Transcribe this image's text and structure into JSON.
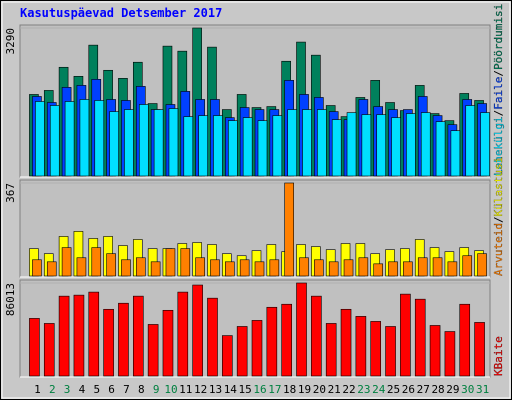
{
  "title": "Kasutuspäevad Detsember 2017",
  "separator": "/",
  "chart_data": [
    {
      "type": "bar",
      "ylim": [
        0,
        3290
      ],
      "yticks": [
        3290
      ],
      "series": [
        {
          "name": "Pöördumisi",
          "color": "#00805c",
          "values": [
            1813,
            1902,
            2417,
            2216,
            2909,
            2350,
            2171,
            2529,
            1611,
            2887,
            2775,
            3290,
            2865,
            1477,
            1813,
            1522,
            1544,
            2551,
            2977,
            2686,
            1567,
            1320,
            1746,
            2126,
            1634,
            1455,
            2014,
            1388,
            1231,
            1835,
            1679
          ]
        },
        {
          "name": "Faile",
          "color": "#0040ff",
          "values": [
            1768,
            1634,
            1970,
            2014,
            2149,
            1701,
            1679,
            1992,
            1477,
            1589,
            1880,
            1701,
            1701,
            1298,
            1522,
            1477,
            1477,
            2126,
            1813,
            1746,
            1432,
            1253,
            1701,
            1544,
            1477,
            1477,
            1768,
            1343,
            1141,
            1701,
            1611
          ]
        },
        {
          "name": "Lehekülgi",
          "color": "#00e0ff",
          "values": [
            1656,
            1567,
            1656,
            1701,
            1679,
            1432,
            1477,
            1589,
            1477,
            1500,
            1320,
            1343,
            1343,
            1231,
            1298,
            1231,
            1343,
            1477,
            1477,
            1477,
            1253,
            1410,
            1365,
            1365,
            1298,
            1388,
            1410,
            1208,
            1007,
            1567,
            1410
          ]
        }
      ]
    },
    {
      "type": "bar",
      "ylim": [
        0,
        367
      ],
      "yticks": [
        367
      ],
      "series": [
        {
          "name": "Külastusi",
          "color": "#ffff00",
          "values": [
            108,
            88,
            156,
            176,
            148,
            156,
            120,
            144,
            108,
            108,
            128,
            132,
            124,
            88,
            80,
            100,
            124,
            96,
            124,
            116,
            104,
            128,
            128,
            88,
            104,
            108,
            144,
            112,
            96,
            112,
            100
          ]
        },
        {
          "name": "Arvuteid",
          "color": "#ff8000",
          "values": [
            64,
            56,
            112,
            72,
            112,
            88,
            64,
            72,
            56,
            108,
            108,
            72,
            64,
            56,
            64,
            56,
            64,
            367,
            72,
            64,
            56,
            64,
            72,
            48,
            56,
            56,
            72,
            72,
            56,
            80,
            88
          ]
        }
      ]
    },
    {
      "type": "bar",
      "ylim": [
        0,
        86013
      ],
      "yticks": [
        86013
      ],
      "categories": [
        "1",
        "2",
        "3",
        "4",
        "5",
        "6",
        "7",
        "8",
        "9",
        "10",
        "11",
        "12",
        "13",
        "14",
        "15",
        "16",
        "17",
        "18",
        "19",
        "20",
        "21",
        "22",
        "23",
        "24",
        "25",
        "26",
        "27",
        "28",
        "29",
        "30",
        "31"
      ],
      "category_colors": [
        "#000000",
        "#008040",
        "#008040",
        "#000000",
        "#000000",
        "#000000",
        "#000000",
        "#000000",
        "#008040",
        "#008040",
        "#000000",
        "#000000",
        "#000000",
        "#000000",
        "#000000",
        "#008040",
        "#008040",
        "#000000",
        "#000000",
        "#000000",
        "#000000",
        "#000000",
        "#008040",
        "#008040",
        "#000000",
        "#000000",
        "#000000",
        "#000000",
        "#000000",
        "#008040",
        "#008040"
      ],
      "series": [
        {
          "name": "KBaite",
          "color": "#ff0000",
          "values": [
            53290,
            48616,
            73858,
            74794,
            77598,
            61705,
            67314,
            73858,
            47681,
            60770,
            77598,
            84143,
            71988,
            37397,
            45811,
            51421,
            63574,
            66379,
            86013,
            73858,
            48616,
            61705,
            55160,
            50485,
            45811,
            75729,
            71053,
            46746,
            41136,
            66379,
            49550
          ]
        }
      ]
    }
  ]
}
